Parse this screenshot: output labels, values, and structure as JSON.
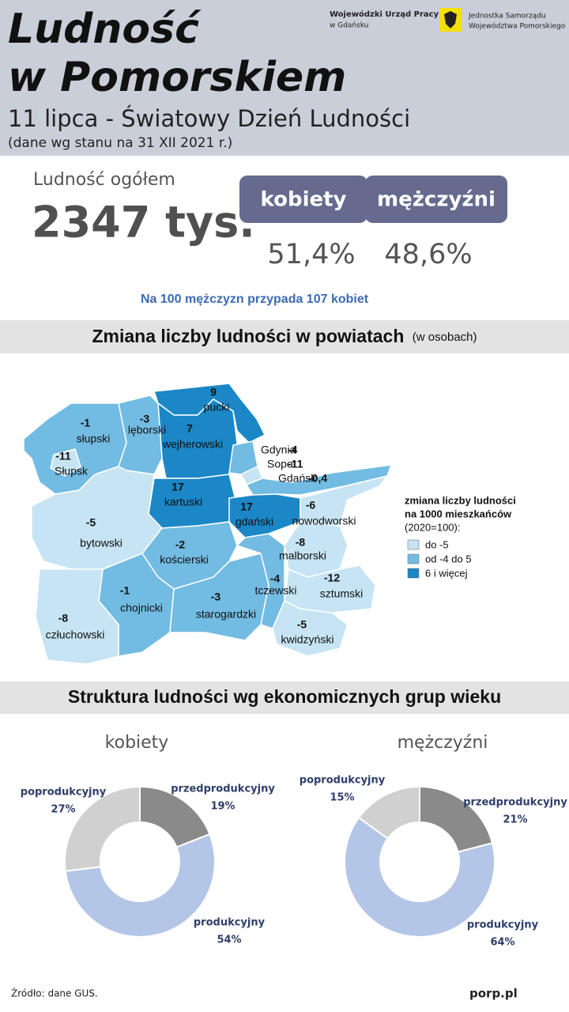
{
  "header": {
    "title_line1": "Ludność",
    "title_line2": "w Pomorskiem",
    "subtitle": "11 lipca - Światowy Dzień Ludności",
    "note": "(dane wg stanu na 31 XII 2021 r.)",
    "logo_left": [
      "Wojewódzki Urząd Pracy",
      "w Gdańsku"
    ],
    "logo_right": [
      "Jednostka Samorządu",
      "Województwa Pomorskiego"
    ]
  },
  "summary": {
    "label": "Ludność ogółem",
    "total": "2347 tys.",
    "women_label": "kobiety",
    "men_label": "mężczyźni",
    "women_share": "51,4%",
    "men_share": "48,6%",
    "ratio": "Na 100 mężczyzn przypada 107 kobiet"
  },
  "map": {
    "title": "Zmiana liczby ludności w powiatach",
    "title_note": "(w osobach)",
    "legend_title": [
      "zmiana liczby ludności",
      "na 1000 mieszkańców"
    ],
    "legend_note": "(2020=100):",
    "legend": [
      {
        "label": "do -5",
        "color": "#c6e4f3"
      },
      {
        "label": "od -4 do 5",
        "color": "#72bbe2"
      },
      {
        "label": "6 i więcej",
        "color": "#1b87c6"
      }
    ],
    "districts": [
      {
        "name": "pucki",
        "value": "9",
        "color": "#1b87c6"
      },
      {
        "name": "wejherowski",
        "value": "7",
        "color": "#1b87c6"
      },
      {
        "name": "lęborski",
        "value": "-3",
        "color": "#72bbe2"
      },
      {
        "name": "słupski",
        "value": "-1",
        "color": "#72bbe2"
      },
      {
        "name": "Słupsk",
        "value": "-11",
        "color": "#c6e4f3"
      },
      {
        "name": "kartuski",
        "value": "17",
        "color": "#1b87c6"
      },
      {
        "name": "Gdynia",
        "value": "-4",
        "color": "#72bbe2"
      },
      {
        "name": "Sopot",
        "value": "-11",
        "color": "#c6e4f3"
      },
      {
        "name": "Gdańsk",
        "value": "-0,4",
        "color": "#72bbe2"
      },
      {
        "name": "gdański",
        "value": "17",
        "color": "#1b87c6"
      },
      {
        "name": "nowodworski",
        "value": "-6",
        "color": "#c6e4f3"
      },
      {
        "name": "bytowski",
        "value": "-5",
        "color": "#c6e4f3"
      },
      {
        "name": "kościerski",
        "value": "-2",
        "color": "#72bbe2"
      },
      {
        "name": "malborski",
        "value": "-8",
        "color": "#c6e4f3"
      },
      {
        "name": "chojnicki",
        "value": "-1",
        "color": "#72bbe2"
      },
      {
        "name": "starogardzki",
        "value": "-3",
        "color": "#72bbe2"
      },
      {
        "name": "tczewski",
        "value": "-4",
        "color": "#72bbe2"
      },
      {
        "name": "sztumski",
        "value": "-12",
        "color": "#c6e4f3"
      },
      {
        "name": "człuchowski",
        "value": "-8",
        "color": "#c6e4f3"
      },
      {
        "name": "kwidzyński",
        "value": "-5",
        "color": "#c6e4f3"
      }
    ]
  },
  "structure_title": "Struktura ludności wg ekonomicznych grup wieku",
  "chart_data": [
    {
      "type": "donut",
      "title": "kobiety",
      "categories": [
        "przedprodukcyjny",
        "produkcyjny",
        "poprodukcyjny"
      ],
      "values": [
        19,
        54,
        27
      ],
      "value_labels": [
        "19%",
        "54%",
        "27%"
      ],
      "colors": [
        "#8a8a8a",
        "#b4c6e7",
        "#d0d0d0"
      ]
    },
    {
      "type": "donut",
      "title": "mężczyźni",
      "categories": [
        "przedprodukcyjny",
        "produkcyjny",
        "poprodukcyjny"
      ],
      "values": [
        21,
        64,
        15
      ],
      "value_labels": [
        "21%",
        "64%",
        "15%"
      ],
      "colors": [
        "#8a8a8a",
        "#b4c6e7",
        "#d0d0d0"
      ]
    }
  ],
  "footer": {
    "source": "Źródło: dane GUS.",
    "site": "porp.pl"
  }
}
